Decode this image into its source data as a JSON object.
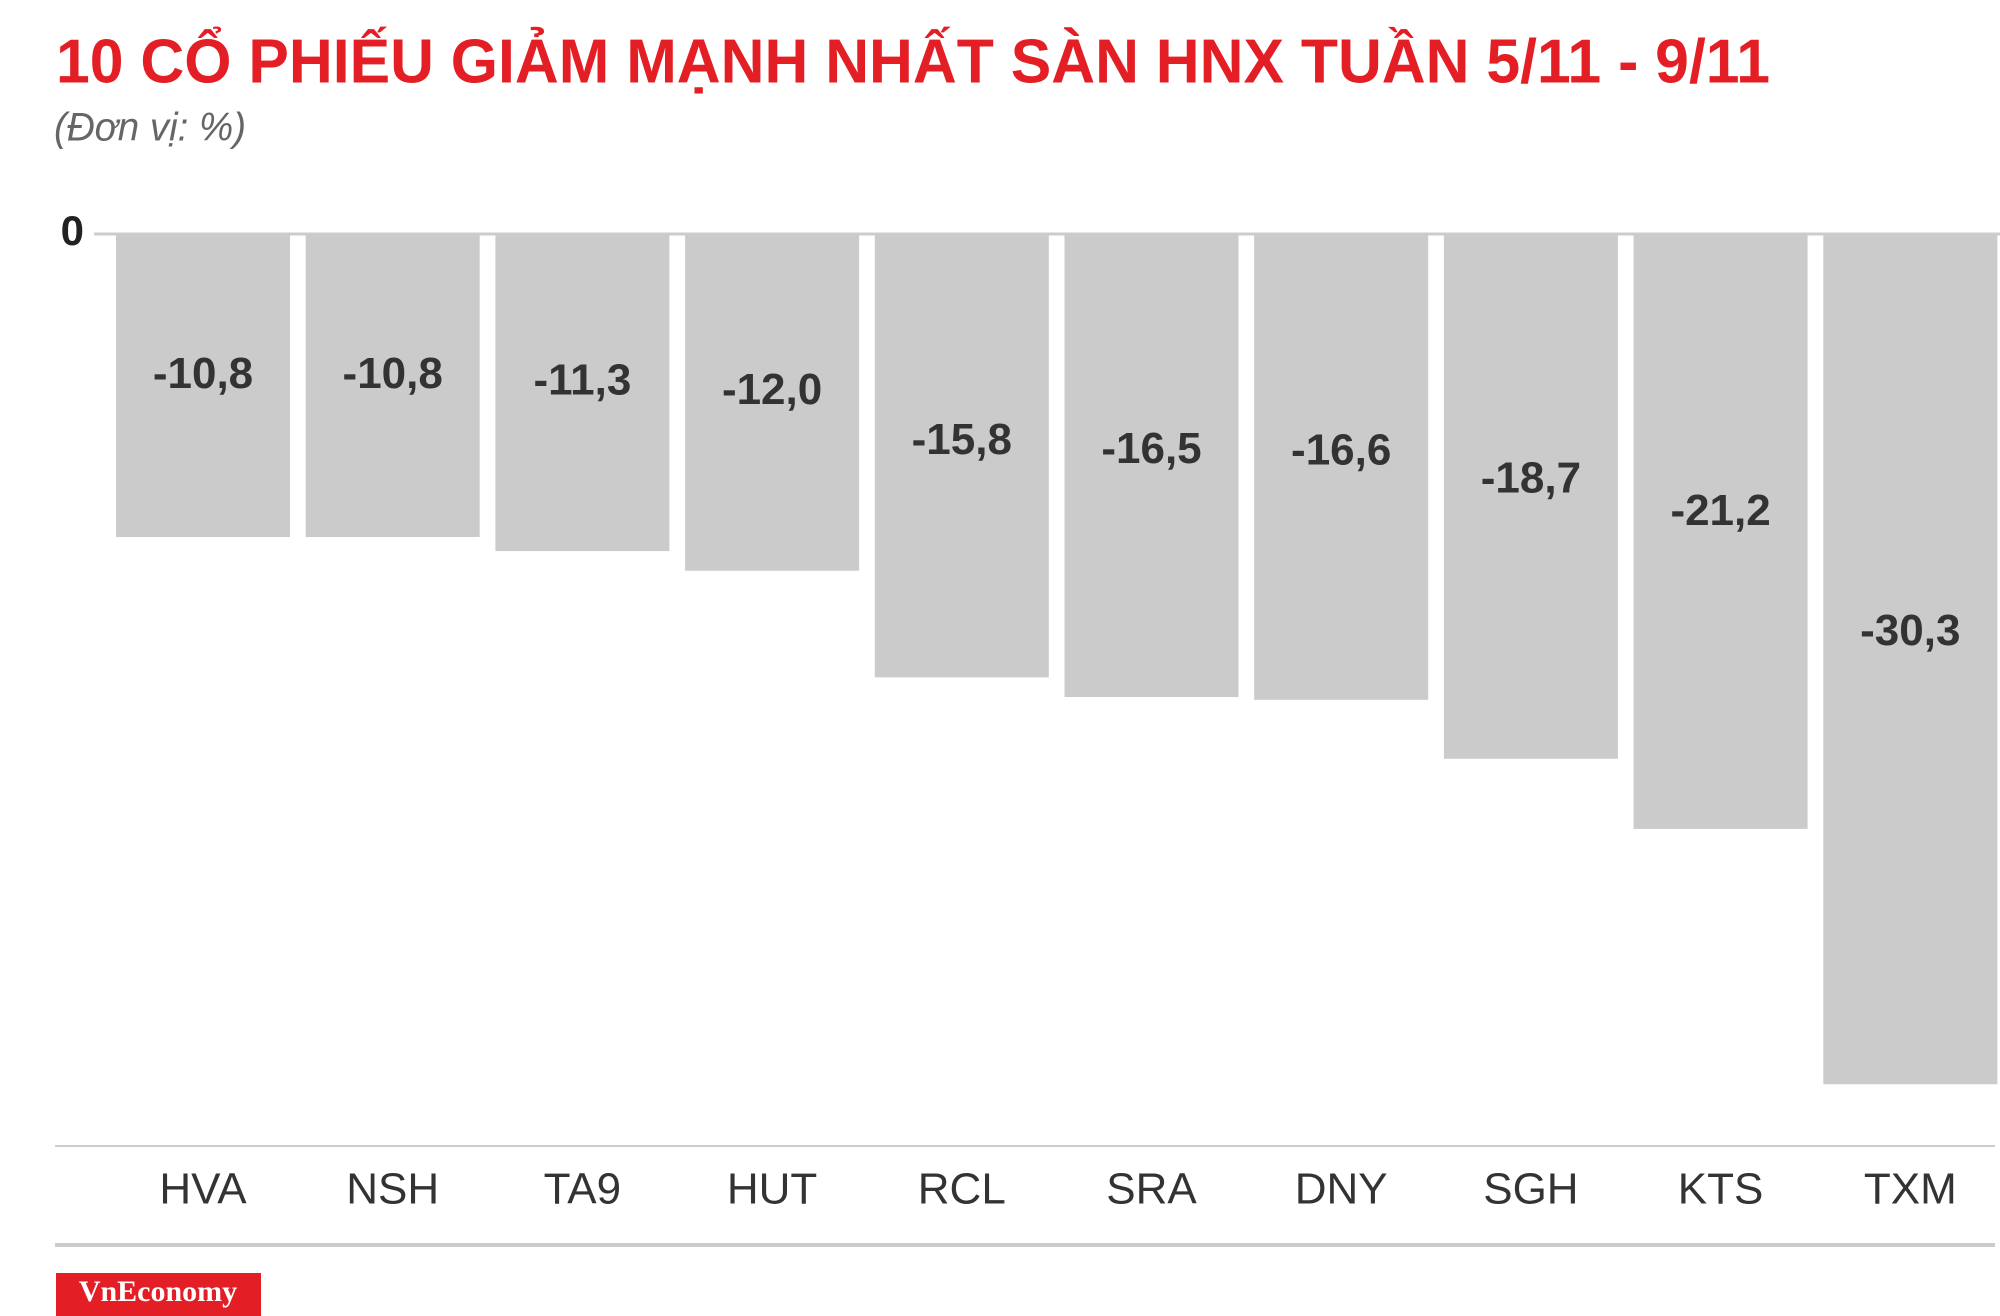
{
  "chart_data": {
    "type": "bar",
    "title": "10 CỔ PHIẾU GIẢM MẠNH NHẤT SÀN HNX TUẦN 5/11 - 9/11",
    "subtitle": "(Đơn vị: %)",
    "categories": [
      "HVA",
      "NSH",
      "TA9",
      "HUT",
      "RCL",
      "SRA",
      "DNY",
      "SGH",
      "KTS",
      "TXM"
    ],
    "values": [
      -10.8,
      -10.8,
      -11.3,
      -12.0,
      -15.8,
      -16.5,
      -16.6,
      -18.7,
      -21.2,
      -30.3
    ],
    "value_labels": [
      "-10,8",
      "-10,8",
      "-11,3",
      "-12,0",
      "-15,8",
      "-16,5",
      "-16,6",
      "-18,7",
      "-21,2",
      "-30,3"
    ],
    "color": "#cccbcc",
    "ylim": [
      -32.5,
      0
    ],
    "yticks": [
      0
    ],
    "source": "VnEconomy"
  }
}
